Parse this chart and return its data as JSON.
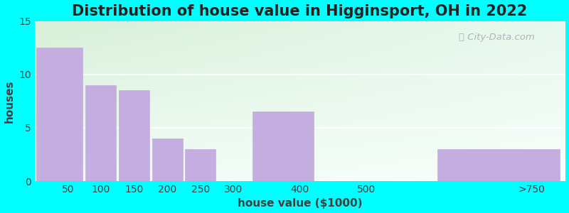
{
  "title": "Distribution of house value in Higginsport, OH in 2022",
  "xlabel": "house value ($1000)",
  "ylabel": "houses",
  "xtick_positions": [
    50,
    100,
    150,
    200,
    250,
    300,
    400,
    500,
    750
  ],
  "xtick_labels": [
    "50",
    "100",
    "150",
    "200",
    "250",
    "300",
    "400",
    "500",
    ">750"
  ],
  "bar_lefts": [
    0,
    75,
    125,
    175,
    225,
    325,
    450,
    600
  ],
  "bar_widths": [
    75,
    50,
    50,
    50,
    50,
    100,
    100,
    200
  ],
  "bar_values": [
    12.5,
    9.0,
    8.5,
    4.0,
    3.0,
    6.5,
    0,
    3.0
  ],
  "bar_color": "#C4AEDF",
  "bar_edgecolor": "#C4AEDF",
  "background_color": "#00FFFF",
  "plot_bg_color_top_left": "#d8f0d8",
  "plot_bg_color_bottom_right": "#f8ffff",
  "ylim": [
    0,
    15
  ],
  "xlim": [
    0,
    800
  ],
  "yticks": [
    0,
    5,
    10,
    15
  ],
  "title_fontsize": 15,
  "axis_label_fontsize": 11,
  "tick_fontsize": 10,
  "watermark_text": "City-Data.com"
}
